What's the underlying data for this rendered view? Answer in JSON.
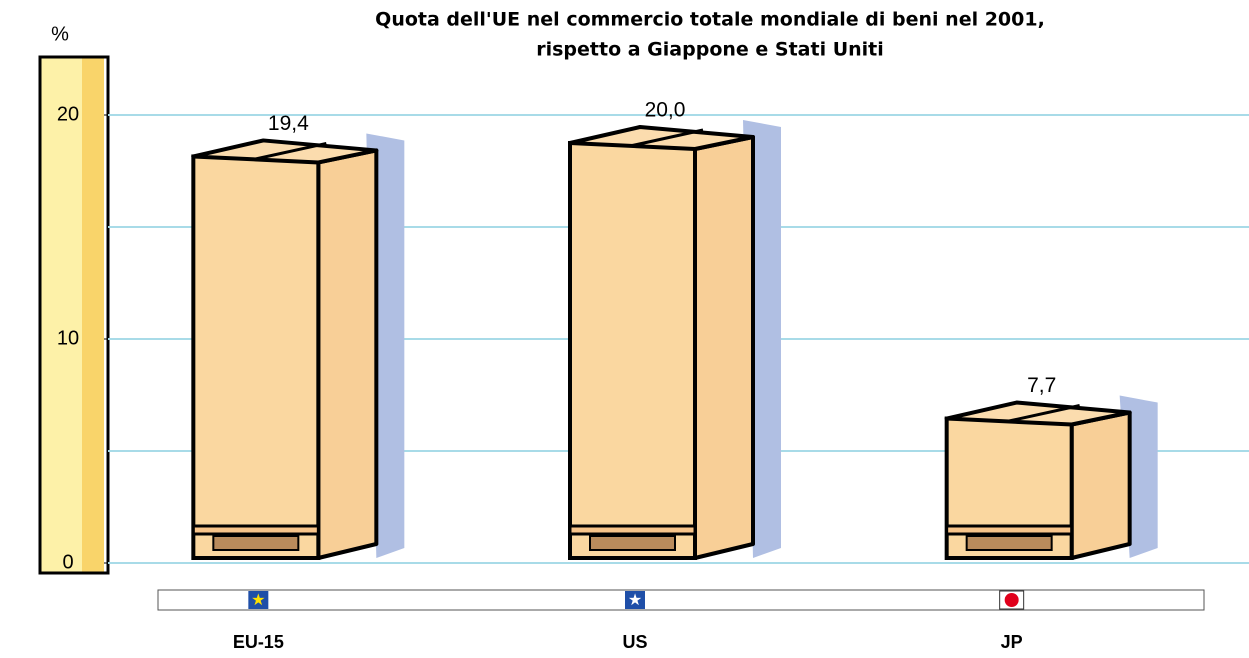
{
  "chart_data": {
    "type": "bar",
    "title": [
      "Quota dell'UE nel commercio totale mondiale di beni nel 2001,",
      "rispetto a Giappone e Stati Uniti"
    ],
    "y_label": "%",
    "categories": [
      "EU-15",
      "US",
      "JP"
    ],
    "values": [
      19.4,
      20.0,
      7.7
    ],
    "value_labels": [
      "19,4",
      "20,0",
      "7,7"
    ],
    "color": "#fad7a0",
    "ylim": [
      0,
      22.5
    ],
    "yticks": [
      0,
      10,
      20
    ],
    "grid_lines": [
      0,
      5,
      10,
      15,
      20
    ],
    "grid": true
  }
}
